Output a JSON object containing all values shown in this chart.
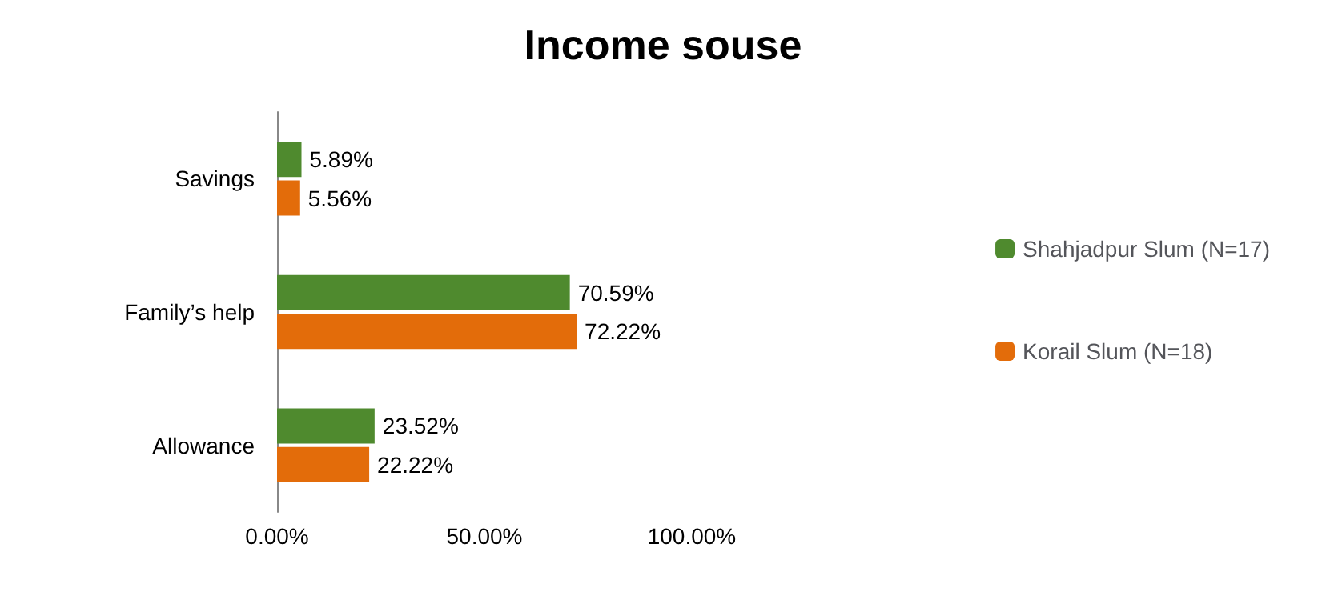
{
  "chart_data": {
    "type": "bar",
    "orientation": "horizontal",
    "title": "Income souse",
    "categories": [
      "Savings",
      "Family’s help",
      "Allowance"
    ],
    "series": [
      {
        "name": "Shahjadpur Slum (N=17)",
        "color": "#4f8a2e",
        "values": [
          5.89,
          70.59,
          23.52
        ],
        "value_labels": [
          "5.89%",
          "70.59%",
          "23.52%"
        ]
      },
      {
        "name": "Korail Slum (N=18)",
        "color": "#e36c0a",
        "values": [
          5.56,
          72.22,
          22.22
        ],
        "value_labels": [
          "5.56%",
          "72.22%",
          "22.22%"
        ]
      }
    ],
    "xlim": [
      0,
      100
    ],
    "xticks": [
      {
        "value": 0,
        "label": "0.00%"
      },
      {
        "value": 50,
        "label": "50.00%"
      },
      {
        "value": 100,
        "label": "100.00%"
      }
    ],
    "grid": false,
    "legend": "right"
  }
}
